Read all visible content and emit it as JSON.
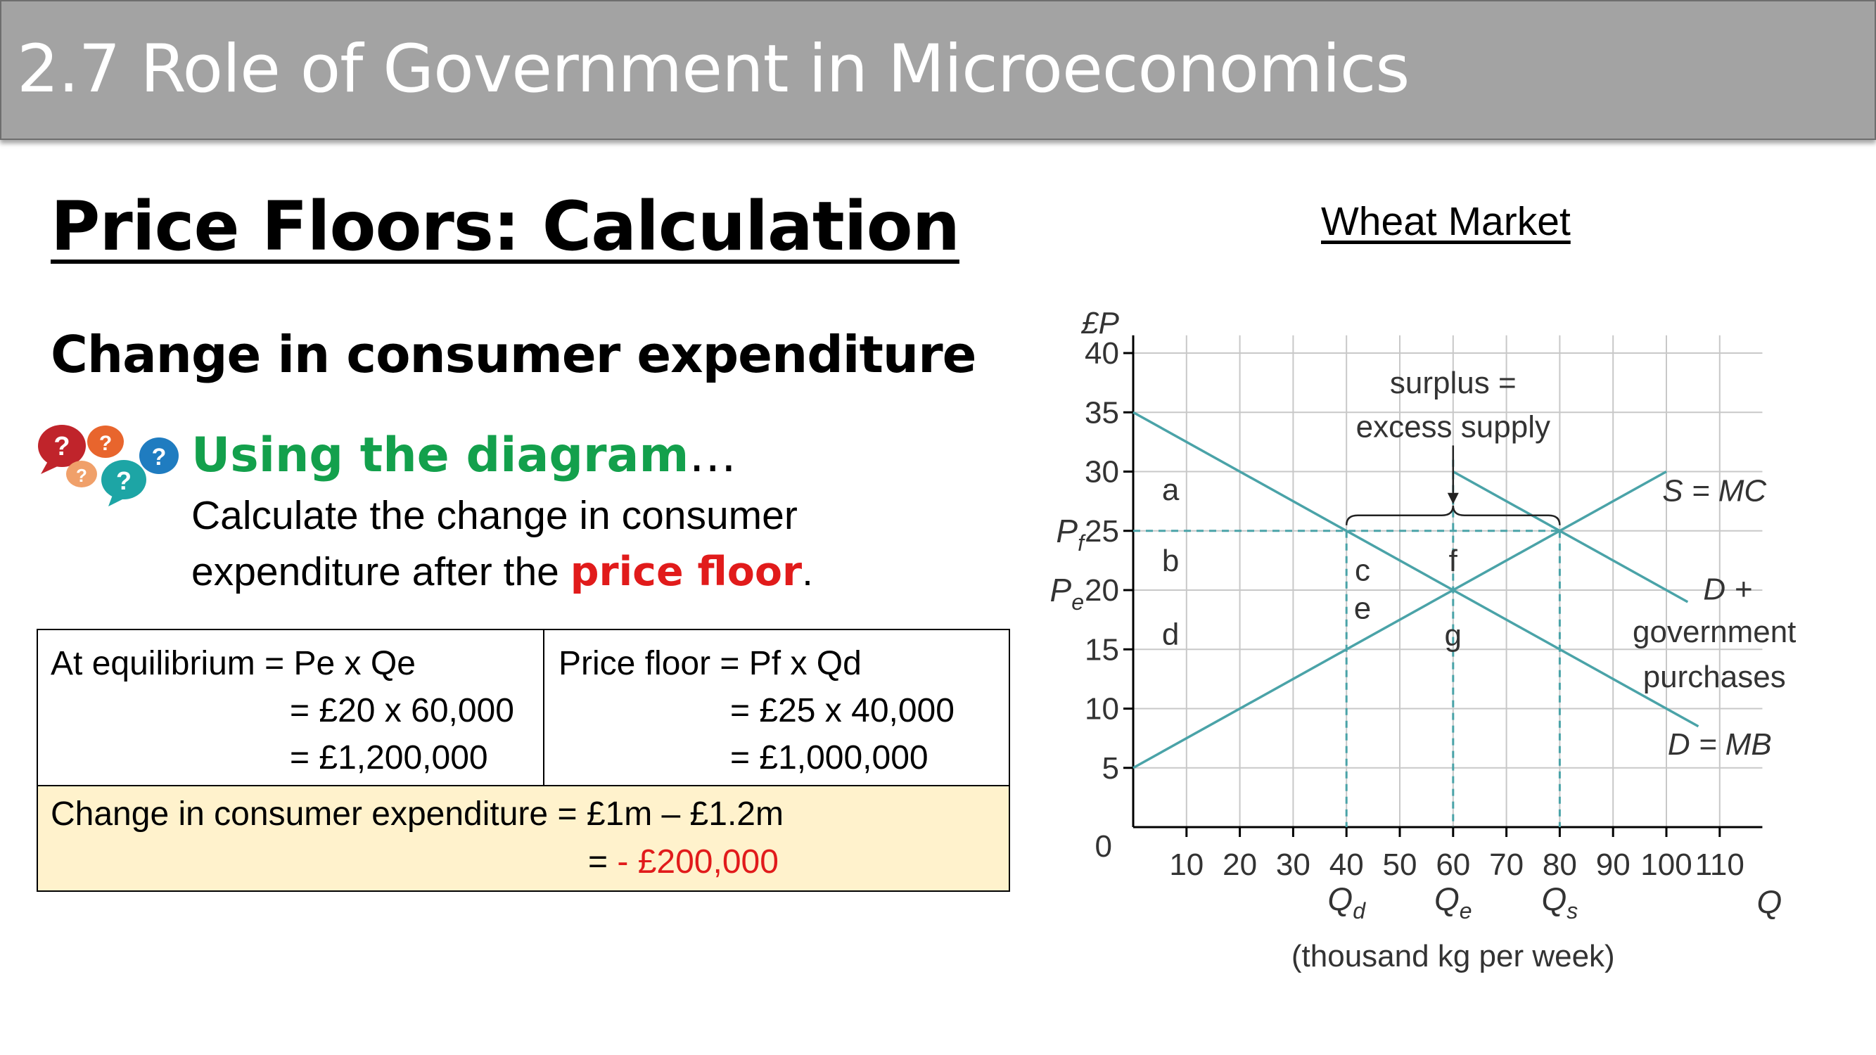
{
  "header": {
    "title": "2.7 Role of Government in Microeconomics"
  },
  "page_title": "Price Floors: Calculation",
  "subtitle": "Change in consumer expenditure",
  "prompt": {
    "heading": "Using the diagram",
    "heading_suffix": "…",
    "line1": "Calculate the change in consumer",
    "line2_prefix": "expenditure after the ",
    "line2_highlight": "price floor",
    "line2_suffix": ".",
    "bubble_glyph": "?"
  },
  "calc_table": {
    "equilibrium": {
      "line1": "At equilibrium = Pe x Qe",
      "line2": "= £20 x 60,000",
      "line3": "= £1,200,000"
    },
    "price_floor": {
      "line1": "Price floor = Pf x Qd",
      "line2": "= £25 x 40,000",
      "line3": "= £1,000,000"
    },
    "change": {
      "line1": "Change in consumer expenditure = £1m – £1.2m",
      "line2_prefix": "= ",
      "line2_value": "- £200,000"
    },
    "colors": {
      "change_bg": "#fff2cc",
      "negative": "#e11b1b"
    }
  },
  "chart_data": {
    "type": "line",
    "title": "Wheat Market",
    "ylabel": "£P",
    "xlabel": "Q",
    "x_unit_label": "(thousand kg per week)",
    "xlim": [
      0,
      120
    ],
    "ylim": [
      0,
      40
    ],
    "x_ticks": [
      10,
      20,
      30,
      40,
      50,
      60,
      70,
      80,
      90,
      100,
      110
    ],
    "y_ticks": [
      5,
      10,
      15,
      20,
      25,
      30,
      35,
      40
    ],
    "origin_label": "0",
    "grid": true,
    "series": [
      {
        "name": "S = MC",
        "x": [
          0,
          100
        ],
        "y": [
          5,
          30
        ]
      },
      {
        "name": "D = MB",
        "x": [
          0,
          106
        ],
        "y": [
          35,
          8.5
        ]
      },
      {
        "name": "D + government purchases",
        "x": [
          60,
          104
        ],
        "y": [
          30,
          19
        ]
      }
    ],
    "y_markers": [
      {
        "base": "P",
        "sub": "f",
        "value": 25
      },
      {
        "base": "P",
        "sub": "e",
        "value": 20
      }
    ],
    "x_markers": [
      {
        "base": "Q",
        "sub": "d",
        "value": 40
      },
      {
        "base": "Q",
        "sub": "e",
        "value": 60
      },
      {
        "base": "Q",
        "sub": "s",
        "value": 80
      }
    ],
    "annotations": [
      {
        "text": "surplus =",
        "x": 60,
        "y": 37.5
      },
      {
        "text": "excess supply",
        "x": 60,
        "y": 33.8
      }
    ],
    "area_labels": [
      {
        "text": "a",
        "x": 7,
        "y": 28.5
      },
      {
        "text": "b",
        "x": 7,
        "y": 22.5
      },
      {
        "text": "c",
        "x": 43,
        "y": 21.7
      },
      {
        "text": "e",
        "x": 43,
        "y": 18.5
      },
      {
        "text": "f",
        "x": 60,
        "y": 22.5
      },
      {
        "text": "g",
        "x": 60,
        "y": 16.2
      },
      {
        "text": "d",
        "x": 7,
        "y": 16.3
      }
    ],
    "curve_labels": [
      {
        "text": "S = MC",
        "x": 109,
        "y": 28.4
      },
      {
        "text": "D +",
        "x": 111.5,
        "y": 20.1
      },
      {
        "text": "government",
        "x": 109,
        "y": 16.5
      },
      {
        "text": "purchases",
        "x": 109,
        "y": 12.7
      },
      {
        "text": "D = MB",
        "x": 110,
        "y": 7
      }
    ],
    "colors": {
      "curve": "#4aa3a8",
      "grid": "#c8c8c8",
      "axis": "#000000"
    }
  }
}
